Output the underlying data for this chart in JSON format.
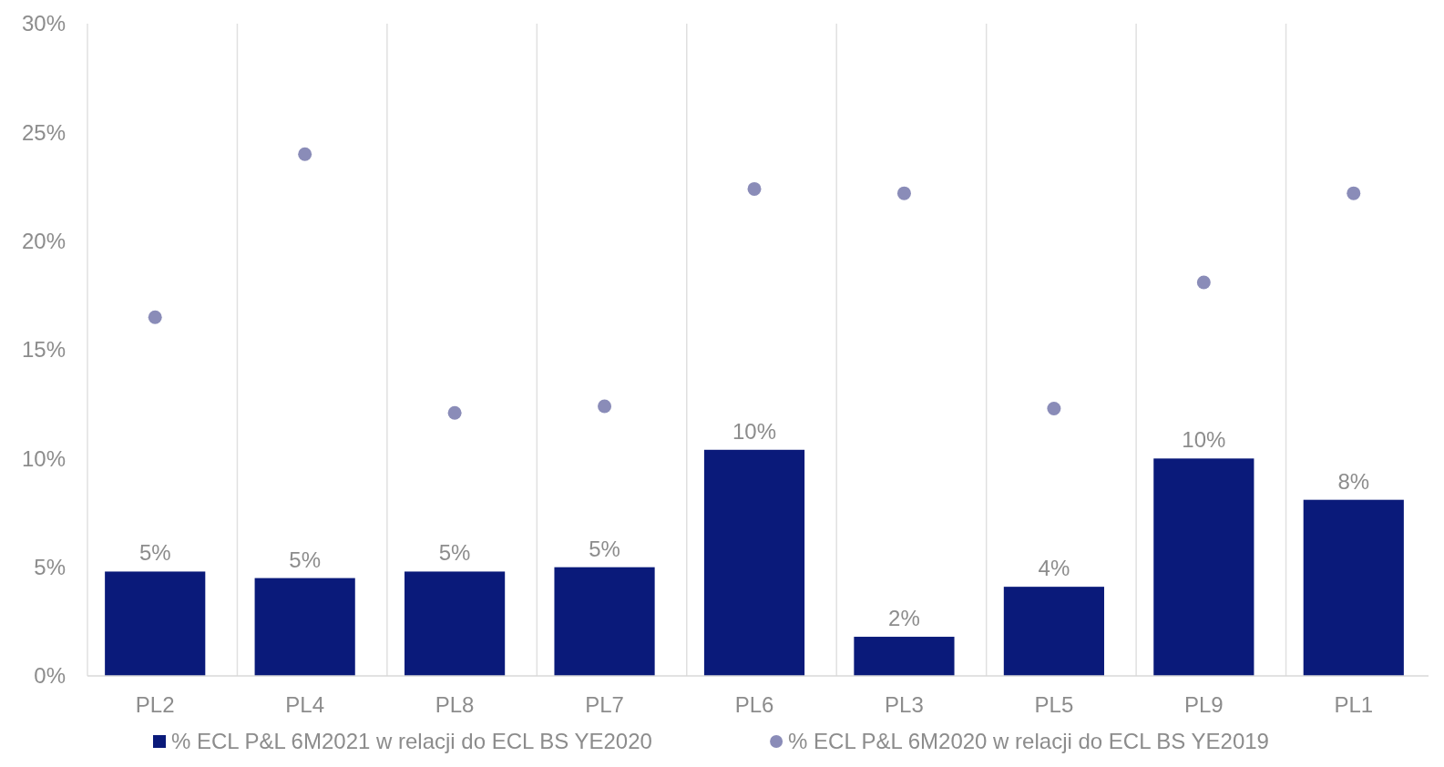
{
  "chart_data": {
    "type": "bar",
    "categories": [
      "PL2",
      "PL4",
      "PL8",
      "PL7",
      "PL6",
      "PL3",
      "PL5",
      "PL9",
      "PL1"
    ],
    "series": [
      {
        "name": "% ECL P&L 6M2021 w relacji do ECL BS YE2020",
        "color": "#0a1a7a",
        "values": [
          4.8,
          4.5,
          4.8,
          5.0,
          10.4,
          1.8,
          4.1,
          10.0,
          8.1
        ],
        "value_labels": [
          "5%",
          "5%",
          "5%",
          "5%",
          "10%",
          "2%",
          "4%",
          "10%",
          "8%"
        ]
      },
      {
        "name": "% ECL P&L 6M2020 w relacji do ECL BS YE2019",
        "type": "scatter",
        "color": "#8a8cb8",
        "values": [
          16.5,
          24.0,
          12.1,
          12.4,
          22.4,
          22.2,
          12.3,
          18.1,
          22.2
        ]
      }
    ],
    "ylim": [
      0,
      30
    ],
    "yticks": [
      {
        "value": 0,
        "label": "0%"
      },
      {
        "value": 5,
        "label": "5%"
      },
      {
        "value": 10,
        "label": "10%"
      },
      {
        "value": 15,
        "label": "15%"
      },
      {
        "value": 20,
        "label": "20%"
      },
      {
        "value": 25,
        "label": "25%"
      },
      {
        "value": 30,
        "label": "30%"
      }
    ],
    "grid": "x",
    "legend": "bottom",
    "marker": "circle"
  }
}
